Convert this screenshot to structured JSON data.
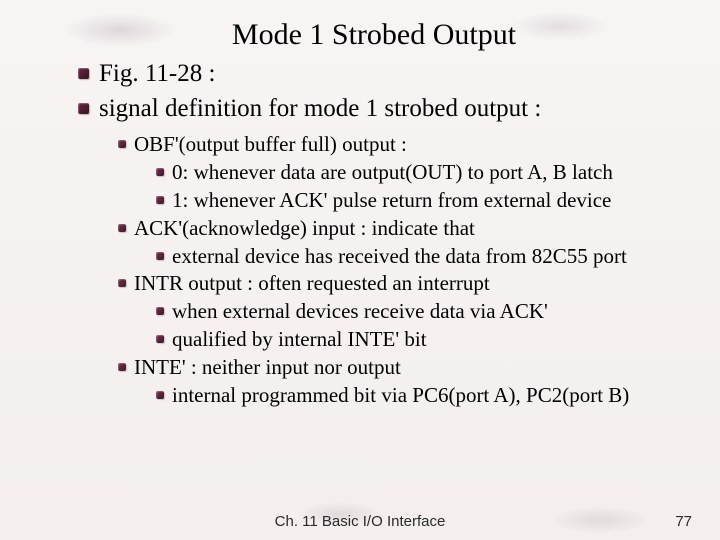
{
  "title": "Mode 1 Strobed Output",
  "lvl1": [
    "Fig. 11-28 :",
    "signal definition for mode 1 strobed output :"
  ],
  "lvl2": [
    {
      "text": "OBF'(output buffer full) output :",
      "sub": [
        "0: whenever data are output(OUT) to port A, B latch",
        "1: whenever ACK' pulse return from external device"
      ]
    },
    {
      "text": "ACK'(acknowledge) input : indicate that",
      "sub": [
        "external device has received the data from 82C55 port"
      ]
    },
    {
      "text": "INTR output :  often requested an interrupt",
      "sub": [
        "when external devices receive data via ACK'",
        "qualified by internal INTE' bit"
      ]
    },
    {
      "text": "INTE' : neither input nor output",
      "sub": [
        "internal programmed bit via PC6(port A), PC2(port B)"
      ]
    }
  ],
  "footer": {
    "center": "Ch. 11 Basic I/O Interface",
    "page": "77"
  },
  "colors": {
    "bullet": "#5a2238",
    "background": "#f6f2f2",
    "text": "#000000",
    "footer_text": "#2a2a2a"
  },
  "fonts": {
    "body": "Times New Roman",
    "footer": "Arial",
    "title_size_pt": 22,
    "lvl1_size_pt": 19,
    "lvl2_size_pt": 16
  }
}
